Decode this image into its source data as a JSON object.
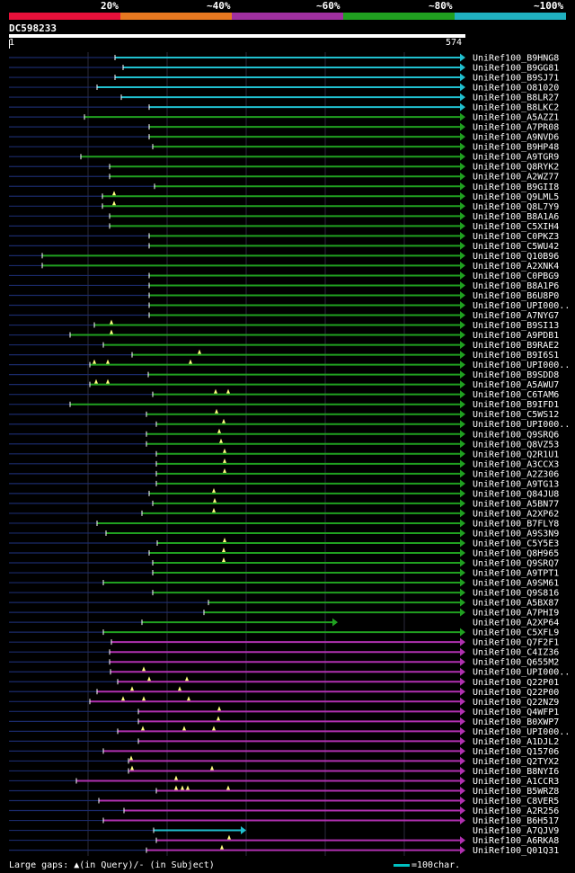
{
  "legend": {
    "colors": [
      "#e8103a",
      "#e87820",
      "#a030a0",
      "#20a020",
      "#20b0c0"
    ],
    "labels": [
      "20%",
      "~40%",
      "~60%",
      "~80%",
      "~100%"
    ]
  },
  "query": {
    "id": "DC598233",
    "start": "1",
    "end": "574",
    "length": 574
  },
  "colors": {
    "c": "#20c0d0",
    "g": "#20a020",
    "m": "#b030b0"
  },
  "hits": [
    {
      "name": "UniRef100_B9HNG8",
      "s": 128,
      "c": "c",
      "g": []
    },
    {
      "name": "UniRef100_B9GG81",
      "s": 137,
      "c": "c",
      "g": []
    },
    {
      "name": "UniRef100_B9SJ71",
      "s": 128,
      "c": "c",
      "g": []
    },
    {
      "name": "UniRef100_O81020",
      "s": 108,
      "c": "c",
      "g": []
    },
    {
      "name": "UniRef100_B8LR27",
      "s": 135,
      "c": "c",
      "g": []
    },
    {
      "name": "UniRef100_B8LKC2",
      "s": 166,
      "c": "c",
      "g": []
    },
    {
      "name": "UniRef100_A5AZZ1",
      "s": 94,
      "c": "g",
      "g": []
    },
    {
      "name": "UniRef100_A7PR08",
      "s": 166,
      "c": "g",
      "g": []
    },
    {
      "name": "UniRef100_A9NVD6",
      "s": 166,
      "c": "g",
      "g": []
    },
    {
      "name": "UniRef100_B9HP48",
      "s": 170,
      "c": "g",
      "g": []
    },
    {
      "name": "UniRef100_A9TGR9",
      "s": 90,
      "c": "g",
      "g": []
    },
    {
      "name": "UniRef100_Q8RYK2",
      "s": 122,
      "c": "g",
      "g": []
    },
    {
      "name": "UniRef100_A2WZ77",
      "s": 122,
      "c": "g",
      "g": []
    },
    {
      "name": "UniRef100_B9GII8",
      "s": 172,
      "c": "g",
      "g": []
    },
    {
      "name": "UniRef100_Q9LML5",
      "s": 114,
      "c": "g",
      "g": [
        127
      ]
    },
    {
      "name": "UniRef100_Q8L7Y9",
      "s": 114,
      "c": "g",
      "g": [
        127
      ]
    },
    {
      "name": "UniRef100_B8A1A6",
      "s": 122,
      "c": "g",
      "g": []
    },
    {
      "name": "UniRef100_C5XIH4",
      "s": 122,
      "c": "g",
      "g": []
    },
    {
      "name": "UniRef100_C0PKZ3",
      "s": 166,
      "c": "g",
      "g": []
    },
    {
      "name": "UniRef100_C5WU42",
      "s": 166,
      "c": "g",
      "g": []
    },
    {
      "name": "UniRef100_Q10B96",
      "s": 47,
      "c": "g",
      "g": []
    },
    {
      "name": "UniRef100_A2XNK4",
      "s": 47,
      "c": "g",
      "g": []
    },
    {
      "name": "UniRef100_C0PBG9",
      "s": 166,
      "c": "g",
      "g": []
    },
    {
      "name": "UniRef100_B8A1P6",
      "s": 166,
      "c": "g",
      "g": []
    },
    {
      "name": "UniRef100_B6U8P0",
      "s": 166,
      "c": "g",
      "g": []
    },
    {
      "name": "UniRef100_UPI000..",
      "s": 166,
      "c": "g",
      "g": []
    },
    {
      "name": "UniRef100_A7NYG7",
      "s": 166,
      "c": "g",
      "g": []
    },
    {
      "name": "UniRef100_B9SI13",
      "s": 105,
      "c": "g",
      "g": [
        124
      ]
    },
    {
      "name": "UniRef100_A9PDB1",
      "s": 78,
      "c": "g",
      "g": [
        124
      ]
    },
    {
      "name": "UniRef100_B9RAE2",
      "s": 115,
      "c": "g",
      "g": []
    },
    {
      "name": "UniRef100_B9I6S1",
      "s": 147,
      "c": "g",
      "g": [
        222
      ]
    },
    {
      "name": "UniRef100_UPI000..",
      "s": 100,
      "c": "g",
      "g": [
        105,
        120,
        212
      ]
    },
    {
      "name": "UniRef100_B9SDD8",
      "s": 165,
      "c": "g",
      "g": []
    },
    {
      "name": "UniRef100_A5AWU7",
      "s": 100,
      "c": "g",
      "g": [
        107,
        120
      ]
    },
    {
      "name": "UniRef100_C6TAM6",
      "s": 170,
      "c": "g",
      "g": [
        240,
        254
      ]
    },
    {
      "name": "UniRef100_B9IFD1",
      "s": 78,
      "c": "g",
      "g": []
    },
    {
      "name": "UniRef100_C5WS12",
      "s": 163,
      "c": "g",
      "g": [
        241
      ]
    },
    {
      "name": "UniRef100_UPI000..",
      "s": 174,
      "c": "g",
      "g": [
        249
      ]
    },
    {
      "name": "UniRef100_Q9SRQ6",
      "s": 163,
      "c": "g",
      "g": [
        244
      ]
    },
    {
      "name": "UniRef100_Q8VZ53",
      "s": 163,
      "c": "g",
      "g": [
        246
      ]
    },
    {
      "name": "UniRef100_Q2R1U1",
      "s": 174,
      "c": "g",
      "g": [
        250
      ]
    },
    {
      "name": "UniRef100_A3CCX3",
      "s": 174,
      "c": "g",
      "g": [
        250
      ]
    },
    {
      "name": "UniRef100_A2Z306",
      "s": 174,
      "c": "g",
      "g": [
        250
      ]
    },
    {
      "name": "UniRef100_A9TG13",
      "s": 174,
      "c": "g",
      "g": []
    },
    {
      "name": "UniRef100_Q84JU8",
      "s": 166,
      "c": "g",
      "g": [
        238
      ]
    },
    {
      "name": "UniRef100_A5BN77",
      "s": 170,
      "c": "g",
      "g": [
        239
      ]
    },
    {
      "name": "UniRef100_A2XP62",
      "s": 158,
      "c": "g",
      "g": [
        238
      ]
    },
    {
      "name": "UniRef100_B7FLY8",
      "s": 108,
      "c": "g",
      "g": []
    },
    {
      "name": "UniRef100_A9S3N9",
      "s": 118,
      "c": "g",
      "g": []
    },
    {
      "name": "UniRef100_C5Y5E3",
      "s": 175,
      "c": "g",
      "g": [
        250
      ]
    },
    {
      "name": "UniRef100_Q8H965",
      "s": 166,
      "c": "g",
      "g": [
        249
      ]
    },
    {
      "name": "UniRef100_Q9SRQ7",
      "s": 170,
      "c": "g",
      "g": [
        249
      ]
    },
    {
      "name": "UniRef100_A9TPT1",
      "s": 170,
      "c": "g",
      "g": []
    },
    {
      "name": "UniRef100_A9SM61",
      "s": 115,
      "c": "g",
      "g": []
    },
    {
      "name": "UniRef100_Q9S816",
      "s": 170,
      "c": "g",
      "g": []
    },
    {
      "name": "UniRef100_A5BX87",
      "s": 232,
      "c": "g",
      "g": []
    },
    {
      "name": "UniRef100_A7PHI9",
      "s": 227,
      "c": "g",
      "g": []
    },
    {
      "name": "UniRef100_A2XP64",
      "s": 158,
      "c": "g",
      "g": [],
      "e": 370
    },
    {
      "name": "UniRef100_C5XFL9",
      "s": 115,
      "c": "g",
      "g": []
    },
    {
      "name": "UniRef100_Q7F2F1",
      "s": 124,
      "c": "m",
      "g": []
    },
    {
      "name": "UniRef100_C4IZ36",
      "s": 122,
      "c": "m",
      "g": []
    },
    {
      "name": "UniRef100_Q655M2",
      "s": 122,
      "c": "m",
      "g": []
    },
    {
      "name": "UniRef100_UPI000..",
      "s": 123,
      "c": "m",
      "g": [
        160
      ]
    },
    {
      "name": "UniRef100_Q22P01",
      "s": 131,
      "c": "m",
      "g": [
        166,
        208
      ]
    },
    {
      "name": "UniRef100_Q22P00",
      "s": 108,
      "c": "m",
      "g": [
        147,
        200
      ]
    },
    {
      "name": "UniRef100_Q22NZ9",
      "s": 100,
      "c": "m",
      "g": [
        137,
        160,
        210
      ]
    },
    {
      "name": "UniRef100_Q4WFP1",
      "s": 154,
      "c": "m",
      "g": [
        244
      ]
    },
    {
      "name": "UniRef100_B0XWP7",
      "s": 154,
      "c": "m",
      "g": [
        243
      ]
    },
    {
      "name": "UniRef100_UPI000..",
      "s": 131,
      "c": "m",
      "g": [
        159,
        205,
        238
      ]
    },
    {
      "name": "UniRef100_A1DJL2",
      "s": 154,
      "c": "m",
      "g": []
    },
    {
      "name": "UniRef100_Q15706",
      "s": 115,
      "c": "m",
      "g": []
    },
    {
      "name": "UniRef100_Q2TYX2",
      "s": 143,
      "c": "m",
      "g": [
        146
      ]
    },
    {
      "name": "UniRef100_B8NYI6",
      "s": 143,
      "c": "m",
      "g": [
        147,
        236
      ]
    },
    {
      "name": "UniRef100_A1CCR3",
      "s": 85,
      "c": "m",
      "g": [
        196
      ]
    },
    {
      "name": "UniRef100_B5WRZ8",
      "s": 174,
      "c": "m",
      "g": [
        196,
        203,
        209,
        254
      ]
    },
    {
      "name": "UniRef100_C8VER5",
      "s": 110,
      "c": "m",
      "g": []
    },
    {
      "name": "UniRef100_A2R256",
      "s": 138,
      "c": "m",
      "g": []
    },
    {
      "name": "UniRef100_B6H517",
      "s": 115,
      "c": "m",
      "g": []
    },
    {
      "name": "UniRef100_A7QJV9",
      "s": 171,
      "c": "c",
      "g": [],
      "e": 268
    },
    {
      "name": "UniRef100_A6RKA8",
      "s": 174,
      "c": "m",
      "g": [
        255
      ]
    },
    {
      "name": "UniRef100_Q01Q31",
      "s": 163,
      "c": "m",
      "g": [
        247
      ]
    }
  ],
  "footer": {
    "text": "Large gaps: ▲(in Query)/- (in Subject)",
    "scale_text": "=100char."
  }
}
